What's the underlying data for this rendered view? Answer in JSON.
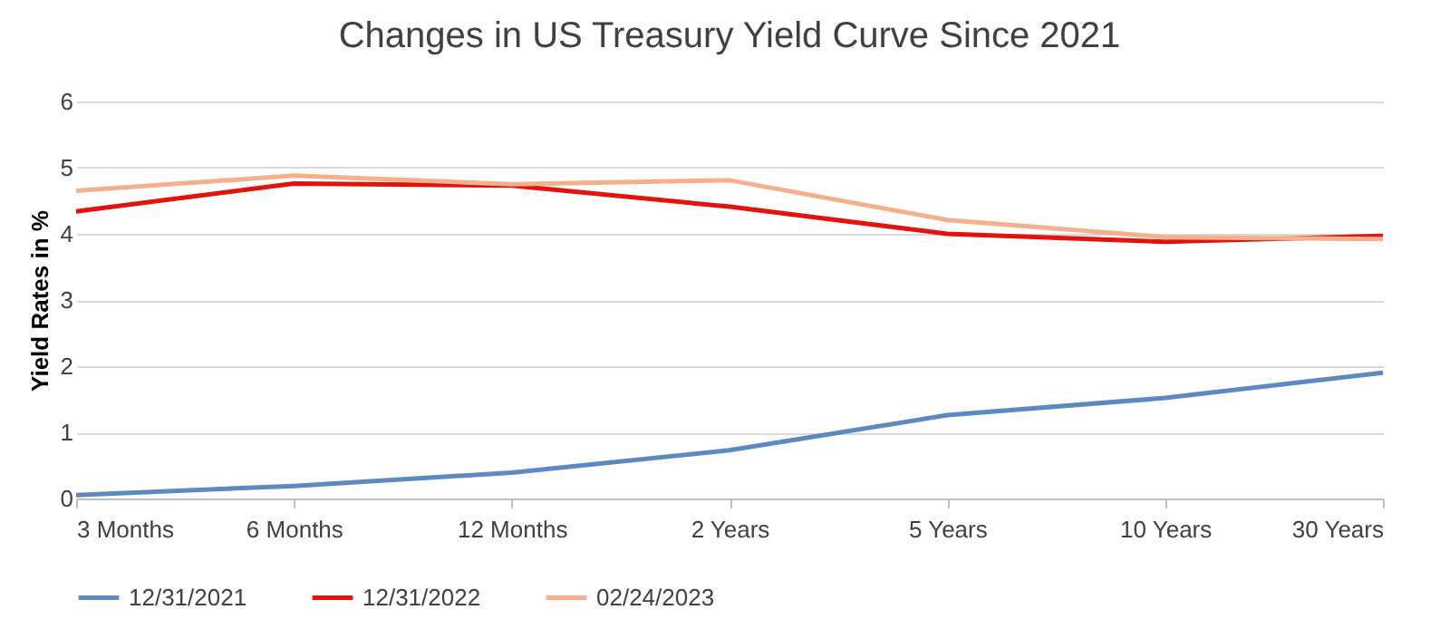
{
  "chart_data": {
    "type": "line",
    "title": "Changes in US Treasury Yield Curve Since 2021",
    "ylabel": "Yield Rates in %",
    "categories": [
      "3 Months",
      "6 Months",
      "12 Months",
      "2 Years",
      "5 Years",
      "10 Years",
      "30 Years"
    ],
    "series": [
      {
        "name": "12/31/2021",
        "color": "#5b8ac0",
        "values": [
          0.05,
          0.19,
          0.39,
          0.73,
          1.26,
          1.52,
          1.9
        ]
      },
      {
        "name": "12/31/2022",
        "color": "#e3120b",
        "values": [
          4.34,
          4.76,
          4.73,
          4.41,
          4.0,
          3.88,
          3.97
        ]
      },
      {
        "name": "02/24/2023",
        "color": "#f4b08c",
        "values": [
          4.65,
          4.88,
          4.75,
          4.81,
          4.21,
          3.95,
          3.92
        ]
      }
    ],
    "ylim": [
      0,
      6
    ],
    "yticks": [
      0,
      1,
      2,
      3,
      4,
      5,
      6
    ],
    "grid": "y",
    "legend": "bottom",
    "marker": "none",
    "line_style": "solid"
  }
}
